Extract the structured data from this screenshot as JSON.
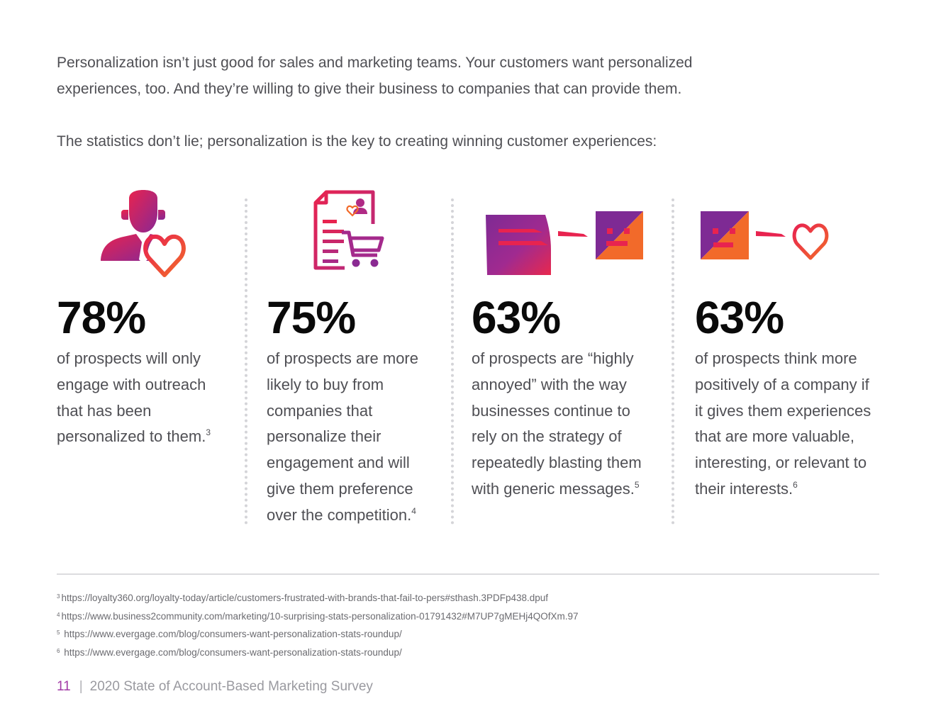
{
  "intro": {
    "paragraph1": "Personalization isn’t just good for sales and marketing teams. Your customers want personalized experiences, too. And they’re willing to give their business to companies that can provide them.",
    "paragraph2": "The statistics don’t lie; personalization is the key to creating winning customer experiences:"
  },
  "stats": [
    {
      "icon": "user-heart-icon",
      "value": "78%",
      "text": "of prospects will only engage with outreach that has been personalized to them.",
      "ref": "3"
    },
    {
      "icon": "document-cart-icon",
      "value": "75%",
      "text": "of prospects are more likely to buy from companies that personalize their engagement and will give them preference over the competition.",
      "ref": "4"
    },
    {
      "icon": "mail-to-annoyed-face-icon",
      "value": "63%",
      "text": "of prospects are “highly annoyed” with the way businesses continue to rely on the strategy of repeatedly blasting them with generic messages.",
      "ref": "5"
    },
    {
      "icon": "face-to-heart-icon",
      "value": "63%",
      "text": "of prospects think more positively of a company if it gives them experiences that are more valuable, interesting, or relevant to their interests.",
      "ref": "6"
    }
  ],
  "footnotes": [
    {
      "num": "3",
      "text": "https://loyalty360.org/loyalty-today/article/customers-frustrated-with-brands-that-fail-to-pers#sthash.3PDFp438.dpuf"
    },
    {
      "num": "4",
      "text": "https://www.business2community.com/marketing/10-surprising-stats-personalization-01791432#M7UP7gMEHj4QOfXm.97"
    },
    {
      "num": "5",
      "text": "https://www.evergage.com/blog/consumers-want-personalization-stats-roundup/"
    },
    {
      "num": "6",
      "text": "https://www.evergage.com/blog/consumers-want-personalization-stats-roundup/"
    }
  ],
  "footer": {
    "page_number": "11",
    "separator": "|",
    "title": "2020 State of Account-Based Marketing Survey"
  },
  "colors": {
    "gradient_start": "#e8234f",
    "gradient_mid": "#b52a8a",
    "gradient_end": "#7b2a93",
    "orange": "#f26a2a"
  }
}
